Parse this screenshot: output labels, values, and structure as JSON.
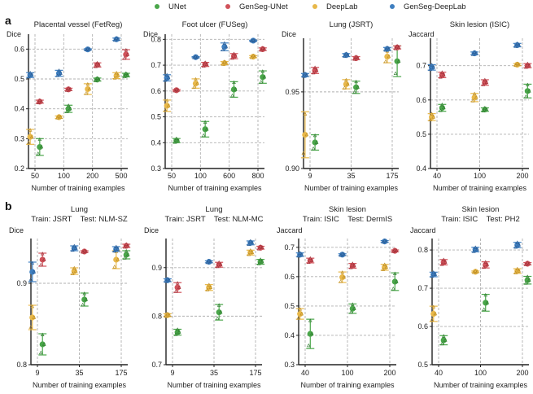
{
  "legend": [
    {
      "name": "UNet",
      "color": "#4aa64a"
    },
    {
      "name": "GenSeg-UNet",
      "color": "#d0525a"
    },
    {
      "name": "DeepLab",
      "color": "#e8b84a"
    },
    {
      "name": "GenSeg-DeepLab",
      "color": "#3f7fc0"
    }
  ],
  "panel_labels": {
    "a": "a",
    "b": "b"
  },
  "chart_data": [
    {
      "type": "scatter",
      "row": "a",
      "title": "Placental vessel (FetReg)",
      "title2": "",
      "ylabel": "Dice",
      "xlabel": "Number of training examples",
      "categories": [
        "50",
        "100",
        "200",
        "500"
      ],
      "ylim": [
        0.2,
        0.65
      ],
      "yticks": [
        0.2,
        0.3,
        0.4,
        0.5,
        0.6
      ],
      "ytick_labels": [
        "0.2",
        "0.3",
        "0.4",
        "0.5",
        "0.6"
      ],
      "grid": true,
      "series": [
        {
          "name": "UNet",
          "mean": [
            0.272,
            0.4,
            0.498,
            0.513
          ],
          "err": [
            0.028,
            0.012,
            0.005,
            0.006
          ]
        },
        {
          "name": "GenSeg-UNet",
          "mean": [
            0.424,
            0.465,
            0.547,
            0.582
          ],
          "err": [
            0.005,
            0.004,
            0.007,
            0.016
          ]
        },
        {
          "name": "DeepLab",
          "mean": [
            0.306,
            0.372,
            0.466,
            0.511
          ],
          "err": [
            0.025,
            0.004,
            0.018,
            0.01
          ]
        },
        {
          "name": "GenSeg-DeepLab",
          "mean": [
            0.513,
            0.519,
            0.599,
            0.633
          ],
          "err": [
            0.008,
            0.01,
            0.002,
            0.004
          ]
        }
      ]
    },
    {
      "type": "scatter",
      "row": "a",
      "title": "Foot ulcer (FUSeg)",
      "title2": "",
      "ylabel": "Dice",
      "xlabel": "Number of training examples",
      "categories": [
        "50",
        "100",
        "600",
        "800"
      ],
      "ylim": [
        0.3,
        0.82
      ],
      "yticks": [
        0.3,
        0.4,
        0.5,
        0.6,
        0.7,
        0.8
      ],
      "ytick_labels": [
        "0.3",
        "0.4",
        "0.5",
        "0.6",
        "0.7",
        "0.8"
      ],
      "grid": true,
      "series": [
        {
          "name": "UNet",
          "mean": [
            0.408,
            0.452,
            0.606,
            0.654
          ],
          "err": [
            0.008,
            0.03,
            0.03,
            0.024
          ]
        },
        {
          "name": "GenSeg-UNet",
          "mean": [
            0.603,
            0.703,
            0.735,
            0.762
          ],
          "err": [
            0.003,
            0.008,
            0.01,
            0.005
          ]
        },
        {
          "name": "DeepLab",
          "mean": [
            0.543,
            0.629,
            0.708,
            0.733
          ],
          "err": [
            0.022,
            0.018,
            0.006,
            0.004
          ]
        },
        {
          "name": "GenSeg-DeepLab",
          "mean": [
            0.651,
            0.731,
            0.771,
            0.795
          ],
          "err": [
            0.012,
            0.002,
            0.015,
            0.002
          ]
        }
      ]
    },
    {
      "type": "scatter",
      "row": "a",
      "title": "Lung (JSRT)",
      "title2": "",
      "ylabel": "Dice",
      "xlabel": "Number of training examples",
      "categories": [
        "9",
        "35",
        "175"
      ],
      "ylim": [
        0.9,
        0.985
      ],
      "yticks": [
        0.9,
        0.95
      ],
      "ytick_labels": [
        "0.90",
        "0.95"
      ],
      "grid": true,
      "series": [
        {
          "name": "UNet",
          "mean": [
            0.917,
            0.953,
            0.97
          ],
          "err": [
            0.005,
            0.004,
            0.01
          ]
        },
        {
          "name": "GenSeg-UNet",
          "mean": [
            0.964,
            0.972,
            0.979
          ],
          "err": [
            0.002,
            0.001,
            0.001
          ]
        },
        {
          "name": "DeepLab",
          "mean": [
            0.922,
            0.955,
            0.973
          ],
          "err": [
            0.015,
            0.003,
            0.004
          ]
        },
        {
          "name": "GenSeg-DeepLab",
          "mean": [
            0.961,
            0.974,
            0.978
          ],
          "err": [
            0.001,
            0.001,
            0.001
          ]
        }
      ]
    },
    {
      "type": "scatter",
      "row": "a",
      "title": "Skin lesion (ISIC)",
      "title2": "",
      "ylabel": "Jaccard",
      "xlabel": "Number of training examples",
      "categories": [
        "40",
        "100",
        "200"
      ],
      "ylim": [
        0.4,
        0.78
      ],
      "yticks": [
        0.4,
        0.5,
        0.6,
        0.7
      ],
      "ytick_labels": [
        "0.4",
        "0.5",
        "0.6",
        "0.7"
      ],
      "grid": true,
      "series": [
        {
          "name": "UNet",
          "mean": [
            0.577,
            0.572,
            0.626
          ],
          "err": [
            0.01,
            0.005,
            0.02
          ]
        },
        {
          "name": "GenSeg-UNet",
          "mean": [
            0.673,
            0.651,
            0.7
          ],
          "err": [
            0.008,
            0.008,
            0.006
          ]
        },
        {
          "name": "DeepLab",
          "mean": [
            0.55,
            0.607,
            0.703
          ],
          "err": [
            0.01,
            0.012,
            0.003
          ]
        },
        {
          "name": "GenSeg-DeepLab",
          "mean": [
            0.695,
            0.736,
            0.76
          ],
          "err": [
            0.008,
            0.004,
            0.005
          ]
        }
      ]
    },
    {
      "type": "scatter",
      "row": "b",
      "title": "Lung",
      "title2": "Train: JSRT    Test: NLM-SZ",
      "ylabel": "Dice",
      "xlabel": "Number of training examples",
      "categories": [
        "9",
        "35",
        "175"
      ],
      "ylim": [
        0.8,
        0.955
      ],
      "yticks": [
        0.8,
        0.9
      ],
      "ytick_labels": [
        "0.8",
        "0.9"
      ],
      "grid": true,
      "series": [
        {
          "name": "UNet",
          "mean": [
            0.825,
            0.88,
            0.935
          ],
          "err": [
            0.013,
            0.008,
            0.005
          ]
        },
        {
          "name": "GenSeg-UNet",
          "mean": [
            0.929,
            0.939,
            0.946
          ],
          "err": [
            0.008,
            0.001,
            0.002
          ]
        },
        {
          "name": "DeepLab",
          "mean": [
            0.858,
            0.915,
            0.929
          ],
          "err": [
            0.015,
            0.004,
            0.011
          ]
        },
        {
          "name": "GenSeg-DeepLab",
          "mean": [
            0.914,
            0.943,
            0.942
          ],
          "err": [
            0.012,
            0.003,
            0.003
          ]
        }
      ]
    },
    {
      "type": "scatter",
      "row": "b",
      "title": "Lung",
      "title2": "Train: JSRT    Test: NLM-MC",
      "ylabel": "Dice",
      "xlabel": "Number of training examples",
      "categories": [
        "9",
        "35",
        "175"
      ],
      "ylim": [
        0.7,
        0.96
      ],
      "yticks": [
        0.7,
        0.8,
        0.9
      ],
      "ytick_labels": [
        "0.7",
        "0.8",
        "0.9"
      ],
      "grid": true,
      "series": [
        {
          "name": "UNet",
          "mean": [
            0.767,
            0.808,
            0.912
          ],
          "err": [
            0.006,
            0.016,
            0.005
          ]
        },
        {
          "name": "GenSeg-UNet",
          "mean": [
            0.859,
            0.906,
            0.941
          ],
          "err": [
            0.01,
            0.005,
            0.003
          ]
        },
        {
          "name": "DeepLab",
          "mean": [
            0.802,
            0.859,
            0.931
          ],
          "err": [
            0.003,
            0.006,
            0.005
          ]
        },
        {
          "name": "GenSeg-DeepLab",
          "mean": [
            0.874,
            0.912,
            0.951
          ],
          "err": [
            0.003,
            0.002,
            0.004
          ]
        }
      ]
    },
    {
      "type": "scatter",
      "row": "b",
      "title": "Skin lesion",
      "title2": "Train: ISIC    Test: DermIS",
      "ylabel": "Jaccard",
      "xlabel": "Number of training examples",
      "categories": [
        "40",
        "100",
        "200"
      ],
      "ylim": [
        0.3,
        0.73
      ],
      "yticks": [
        0.3,
        0.4,
        0.5,
        0.6,
        0.7
      ],
      "ytick_labels": [
        "0.3",
        "0.4",
        "0.5",
        "0.6",
        "0.7"
      ],
      "grid": true,
      "series": [
        {
          "name": "UNet",
          "mean": [
            0.405,
            0.491,
            0.583
          ],
          "err": [
            0.05,
            0.016,
            0.03
          ]
        },
        {
          "name": "GenSeg-UNet",
          "mean": [
            0.655,
            0.637,
            0.688
          ],
          "err": [
            0.008,
            0.008,
            0.003
          ]
        },
        {
          "name": "DeepLab",
          "mean": [
            0.473,
            0.598,
            0.632
          ],
          "err": [
            0.018,
            0.018,
            0.01
          ]
        },
        {
          "name": "GenSeg-DeepLab",
          "mean": [
            0.675,
            0.675,
            0.72
          ],
          "err": [
            0.006,
            0.003,
            0.003
          ]
        }
      ]
    },
    {
      "type": "scatter",
      "row": "b",
      "title": "Skin lesion",
      "title2": "Train: ISIC    Test: PH2",
      "ylabel": "Jaccard",
      "xlabel": "Number of training examples",
      "categories": [
        "40",
        "100",
        "200"
      ],
      "ylim": [
        0.5,
        0.83
      ],
      "yticks": [
        0.5,
        0.6,
        0.7,
        0.8
      ],
      "ytick_labels": [
        "0.5",
        "0.6",
        "0.7",
        "0.8"
      ],
      "grid": true,
      "series": [
        {
          "name": "UNet",
          "mean": [
            0.564,
            0.662,
            0.721
          ],
          "err": [
            0.012,
            0.022,
            0.01
          ]
        },
        {
          "name": "GenSeg-UNet",
          "mean": [
            0.768,
            0.761,
            0.764
          ],
          "err": [
            0.007,
            0.008,
            0.003
          ]
        },
        {
          "name": "DeepLab",
          "mean": [
            0.633,
            0.743,
            0.745
          ],
          "err": [
            0.02,
            0.002,
            0.006
          ]
        },
        {
          "name": "GenSeg-DeepLab",
          "mean": [
            0.736,
            0.801,
            0.813
          ],
          "err": [
            0.006,
            0.006,
            0.007
          ]
        }
      ]
    }
  ]
}
